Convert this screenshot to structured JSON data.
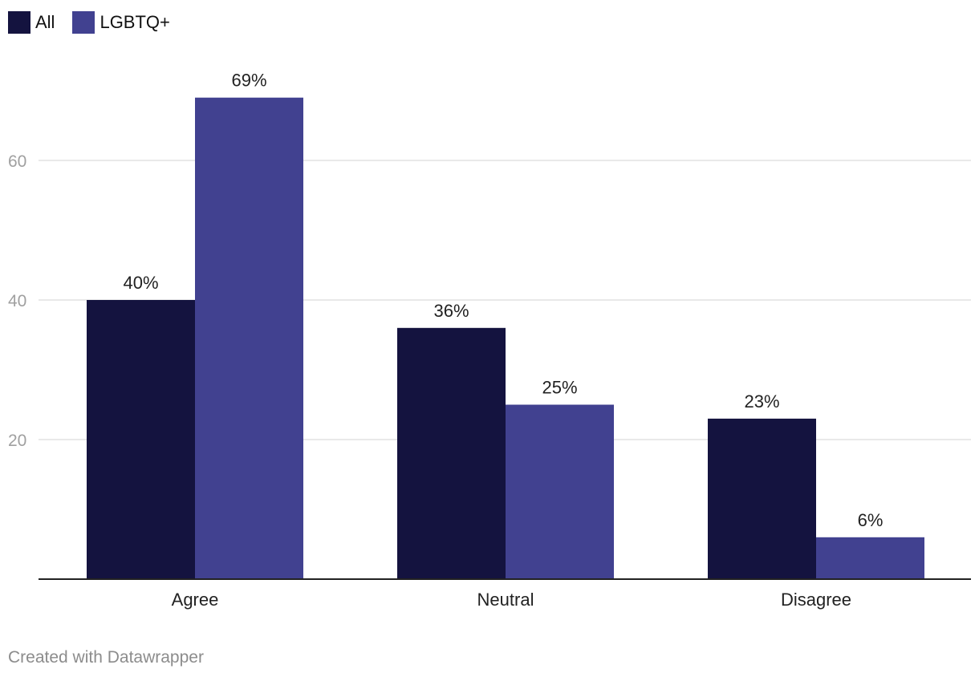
{
  "colors": {
    "all": "#14133f",
    "lgbtq": "#414190",
    "grid": "#e2e2e2",
    "axis": "#222222"
  },
  "legend": [
    {
      "name": "All",
      "color": "#14133f"
    },
    {
      "name": "LGBTQ+",
      "color": "#414190"
    }
  ],
  "footer": "Created with Datawrapper",
  "chart_data": {
    "type": "bar",
    "categories": [
      "Agree",
      "Neutral",
      "Disagree"
    ],
    "series": [
      {
        "name": "All",
        "values": [
          40,
          36,
          23
        ],
        "labels": [
          "40%",
          "36%",
          "23%"
        ]
      },
      {
        "name": "LGBTQ+",
        "values": [
          69,
          25,
          6
        ],
        "labels": [
          "69%",
          "25%",
          "6%"
        ]
      }
    ],
    "yticks": [
      20,
      40,
      60
    ],
    "ylim": [
      0,
      80
    ],
    "grid": true,
    "legend_position": "top-left"
  }
}
